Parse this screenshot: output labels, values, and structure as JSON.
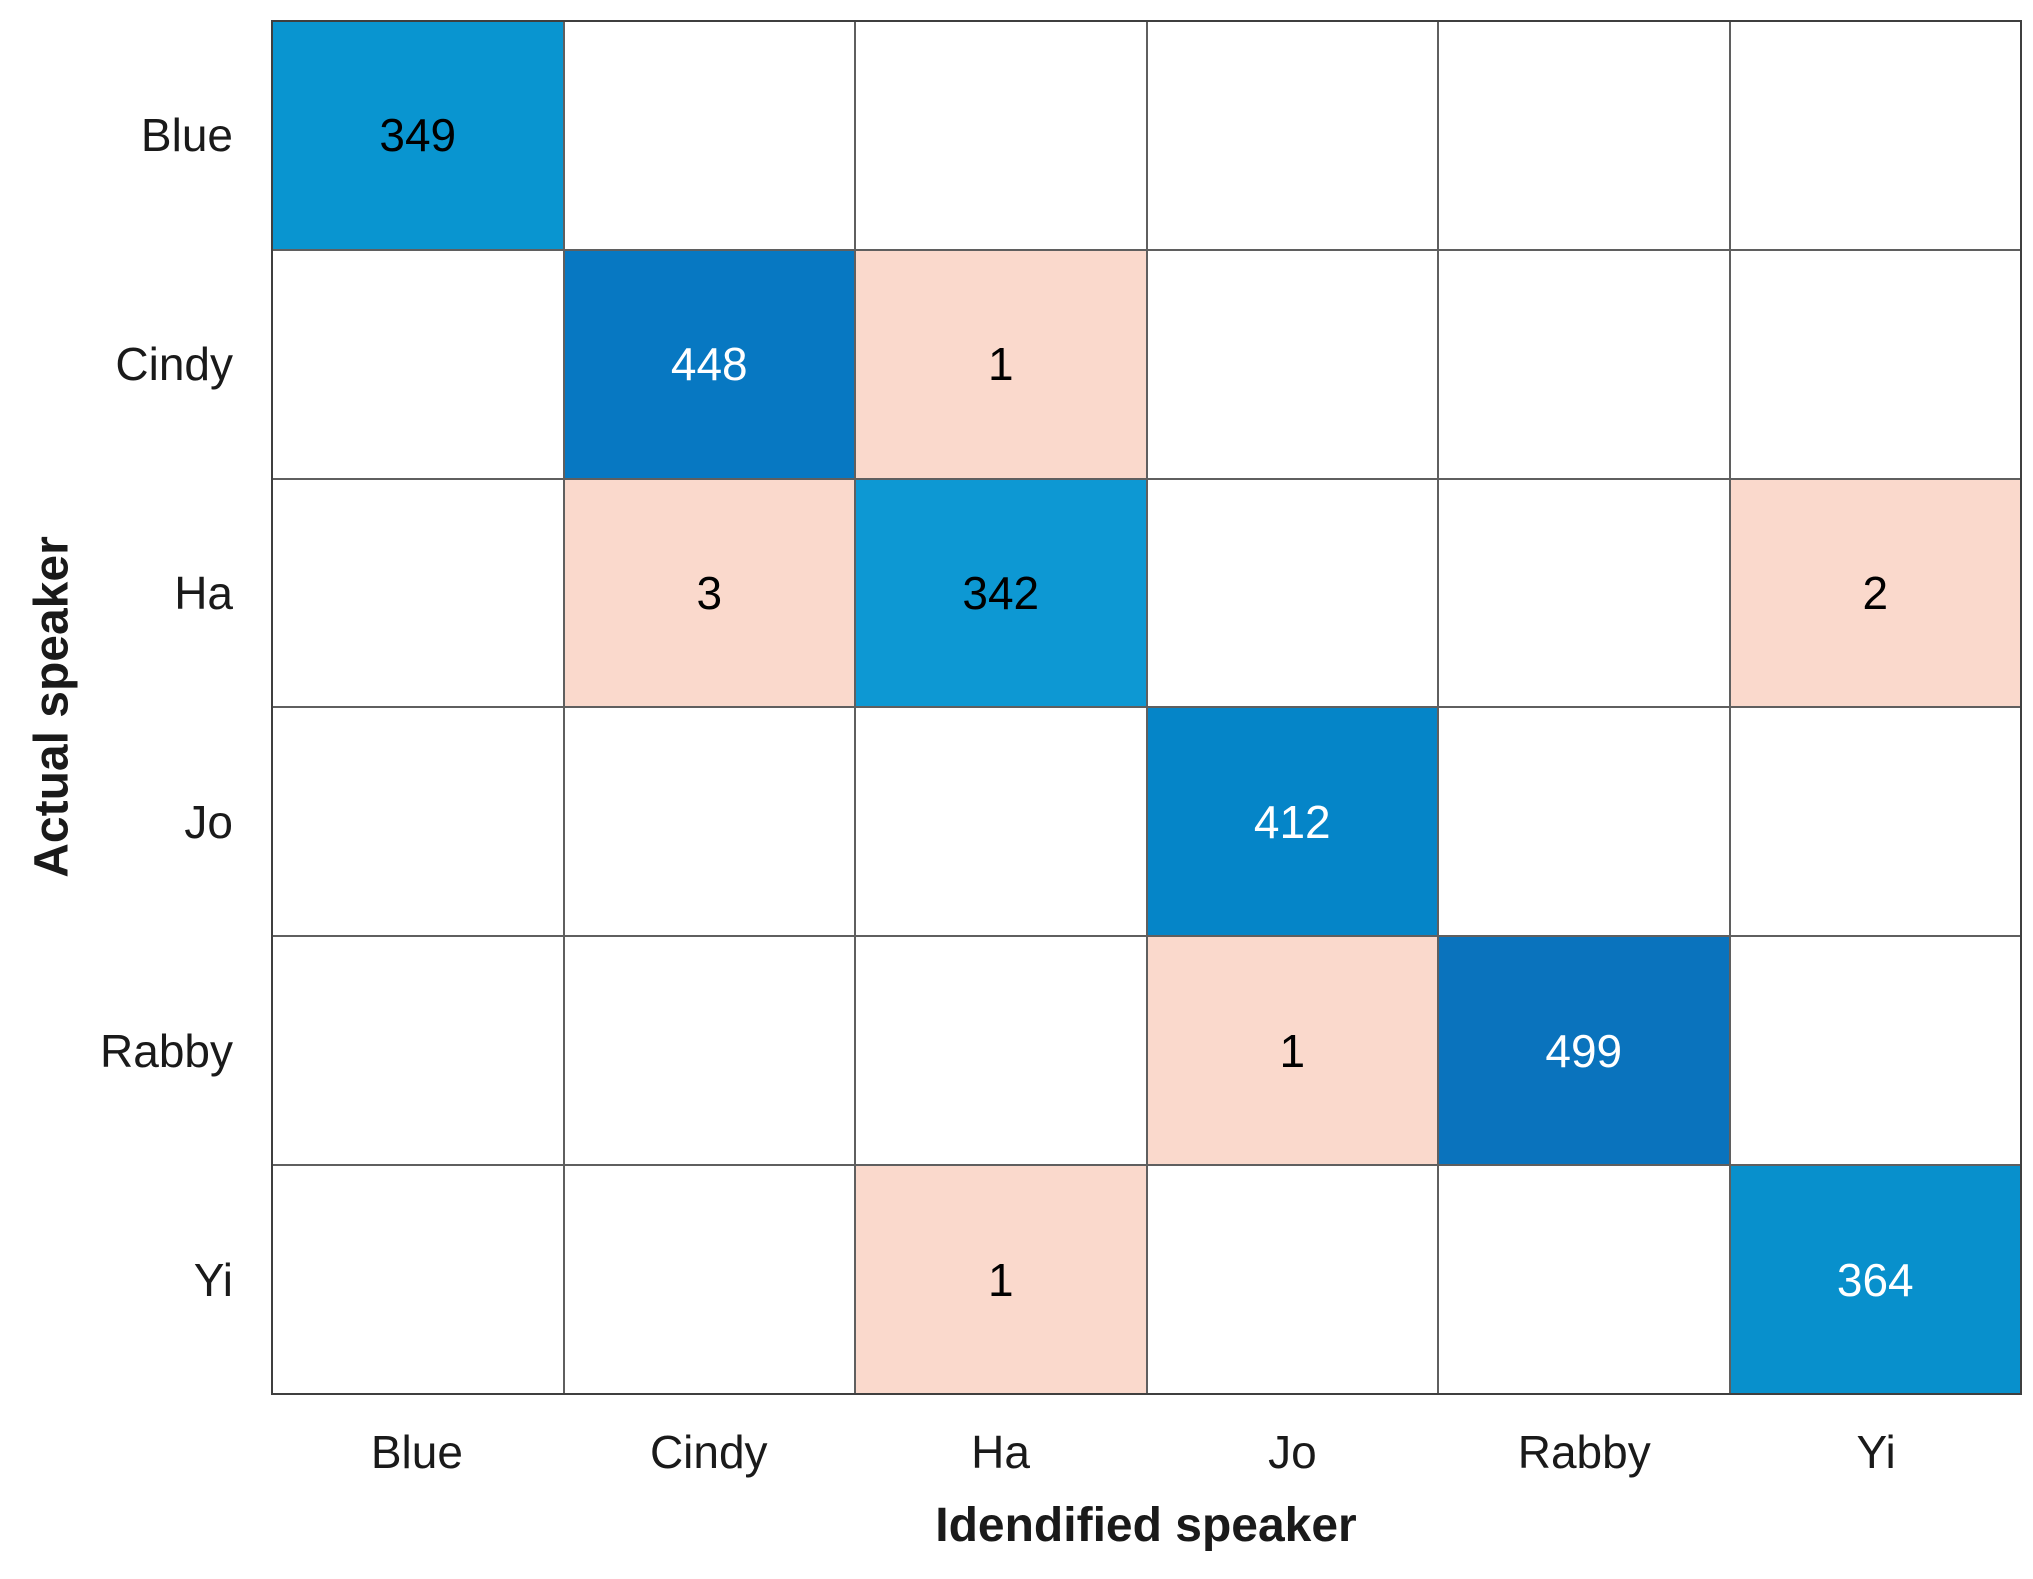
{
  "chart_data": {
    "type": "heatmap",
    "subtype": "confusion-matrix",
    "title": "",
    "xlabel": "Idendified speaker",
    "ylabel": "Actual speaker",
    "classes": [
      "Blue",
      "Cindy",
      "Ha",
      "Jo",
      "Rabby",
      "Yi"
    ],
    "rows": [
      [
        349,
        0,
        0,
        0,
        0,
        0
      ],
      [
        0,
        448,
        1,
        0,
        0,
        0
      ],
      [
        0,
        3,
        342,
        0,
        0,
        2
      ],
      [
        0,
        0,
        0,
        412,
        0,
        0
      ],
      [
        0,
        0,
        0,
        1,
        499,
        0
      ],
      [
        0,
        0,
        1,
        0,
        0,
        364
      ]
    ],
    "cells": [
      {
        "row": "Blue",
        "col": "Blue",
        "value": "349",
        "bg": "#0995d0",
        "fg": "#000000"
      },
      {
        "row": "Cindy",
        "col": "Cindy",
        "value": "448",
        "bg": "#0778c2",
        "fg": "#ffffff"
      },
      {
        "row": "Cindy",
        "col": "Ha",
        "value": "1",
        "bg": "#fad9cc",
        "fg": "#000000"
      },
      {
        "row": "Ha",
        "col": "Cindy",
        "value": "3",
        "bg": "#fad9cc",
        "fg": "#000000"
      },
      {
        "row": "Ha",
        "col": "Ha",
        "value": "342",
        "bg": "#0d98d3",
        "fg": "#000000"
      },
      {
        "row": "Ha",
        "col": "Yi",
        "value": "2",
        "bg": "#fad9cc",
        "fg": "#000000"
      },
      {
        "row": "Jo",
        "col": "Jo",
        "value": "412",
        "bg": "#0585c8",
        "fg": "#ffffff"
      },
      {
        "row": "Rabby",
        "col": "Jo",
        "value": "1",
        "bg": "#fad9cc",
        "fg": "#000000"
      },
      {
        "row": "Rabby",
        "col": "Rabby",
        "value": "499",
        "bg": "#0a73bd",
        "fg": "#ffffff"
      },
      {
        "row": "Yi",
        "col": "Ha",
        "value": "1",
        "bg": "#fad9cc",
        "fg": "#000000"
      },
      {
        "row": "Yi",
        "col": "Yi",
        "value": "364",
        "bg": "#0890cc",
        "fg": "#ffffff"
      }
    ],
    "empty_color": "#ffffff",
    "diagonal_base_color": "#0a73bd",
    "offdiagonal_color": "#fad9cc",
    "grid_line_color": "#5f5f5f",
    "legend": "none",
    "grid": "on",
    "x_range": [
      "Blue",
      "Yi"
    ],
    "y_range": [
      "Blue",
      "Yi"
    ]
  }
}
